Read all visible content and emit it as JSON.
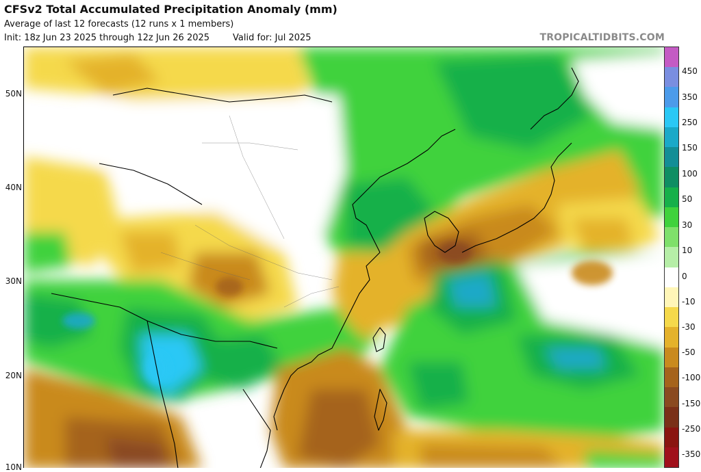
{
  "header": {
    "title": "CFSv2 Total Accumulated Precipitation Anomaly (mm)",
    "subtitle": "Average of last 12 forecasts (12 runs x 1 members)",
    "init": "Init: 18z Jun 23 2025 through 12z Jun 26 2025",
    "valid": "Valid for: Jul 2025",
    "credit": "TROPICALTIDBITS.COM"
  },
  "map": {
    "latitude_labels": [
      "50N",
      "40N",
      "30N",
      "20N",
      "10N"
    ]
  },
  "colorbar": {
    "labels": [
      "450",
      "350",
      "250",
      "150",
      "100",
      "50",
      "30",
      "10",
      "0",
      "-10",
      "-30",
      "-50",
      "-100",
      "-150",
      "-250",
      "-350"
    ],
    "colors": [
      "#c45bc4",
      "#7a8ee0",
      "#4c9bea",
      "#2ac8f5",
      "#1aa9c8",
      "#138e96",
      "#0f8e63",
      "#16b04a",
      "#3fd23c",
      "#7fe06a",
      "#b6eea7",
      "#ffffff",
      "#fff6b8",
      "#f5d94b",
      "#e4b22b",
      "#c98a1e",
      "#a5631c",
      "#8a4a20",
      "#7a3018",
      "#8a1410",
      "#a0101b"
    ]
  }
}
